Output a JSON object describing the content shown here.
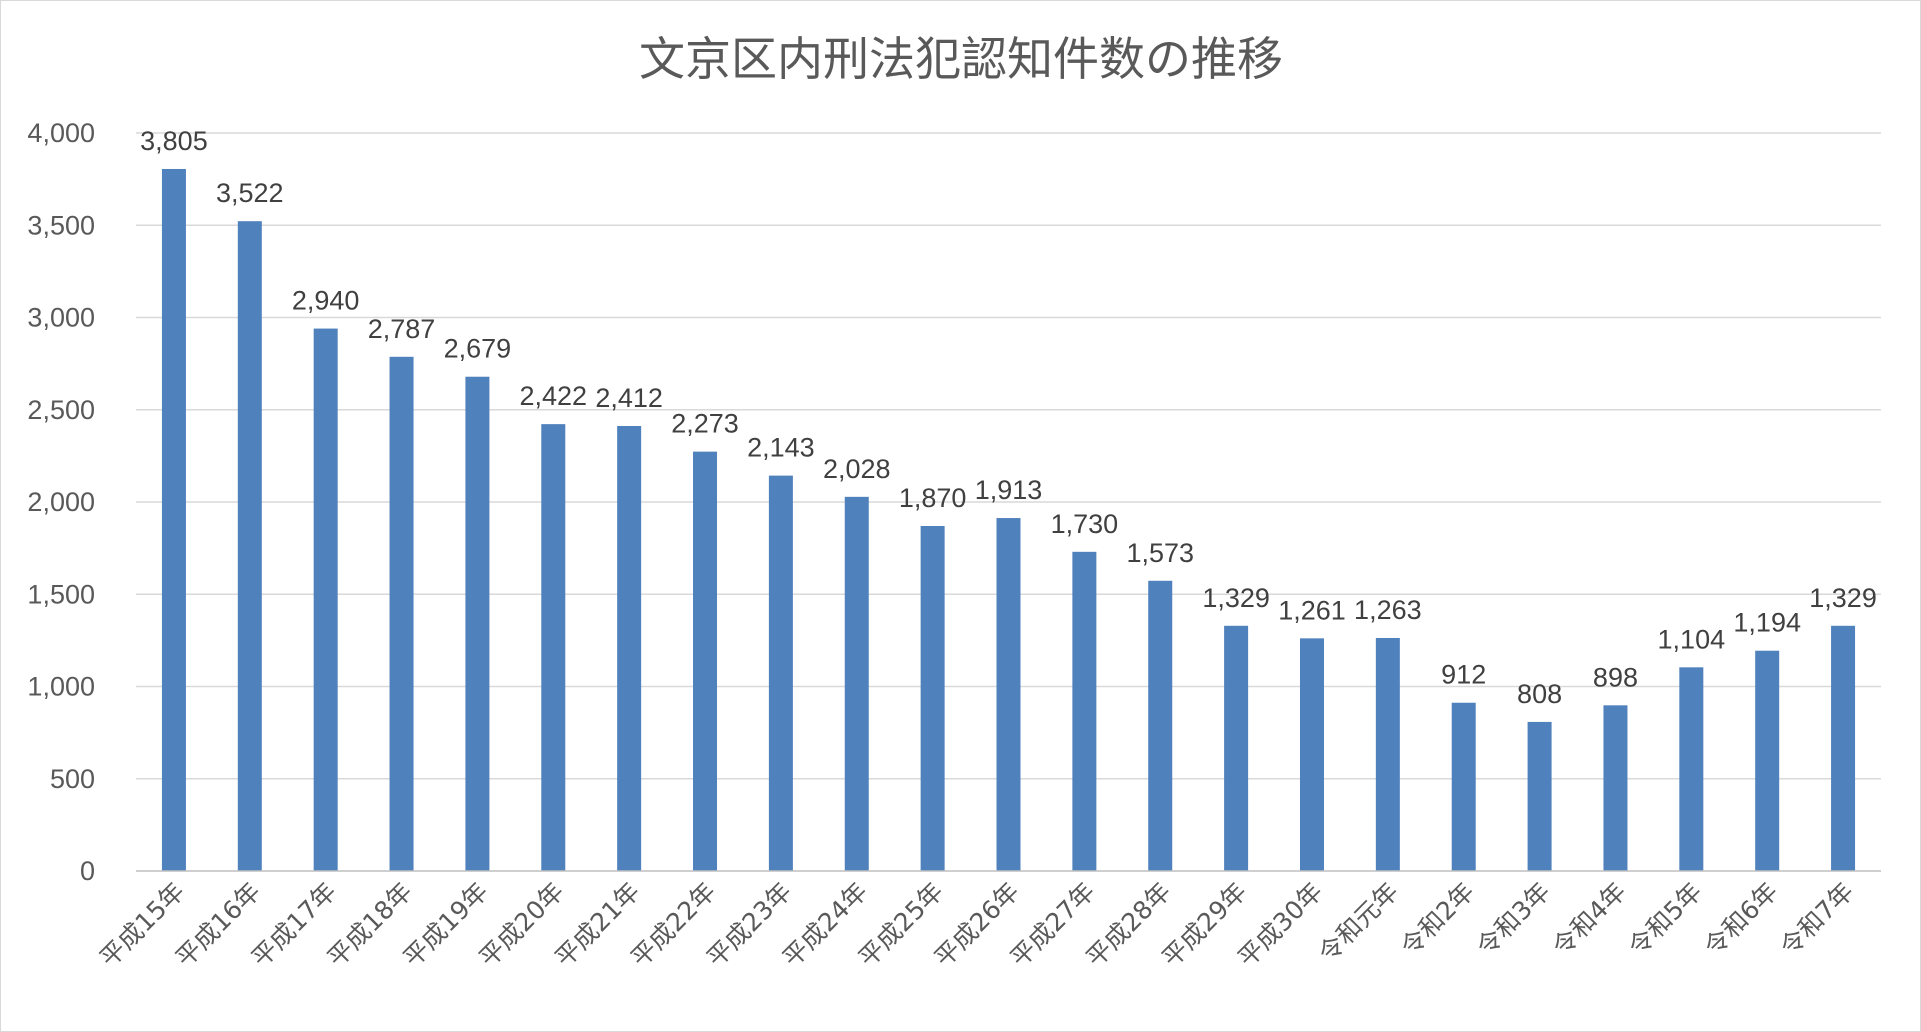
{
  "chart_data": {
    "type": "bar",
    "title": "文京区内刑法犯認知件数の推移",
    "xlabel": "",
    "ylabel": "",
    "ylim": [
      0,
      4000
    ],
    "yticks": [
      0,
      500,
      1000,
      1500,
      2000,
      2500,
      3000,
      3500,
      4000
    ],
    "ytick_labels": [
      "0",
      "500",
      "1,000",
      "1,500",
      "2,000",
      "2,500",
      "3,000",
      "3,500",
      "4,000"
    ],
    "grid": true,
    "legend": "none",
    "bar_color": "#4f81bd",
    "categories": [
      "平成15年",
      "平成16年",
      "平成17年",
      "平成18年",
      "平成19年",
      "平成20年",
      "平成21年",
      "平成22年",
      "平成23年",
      "平成24年",
      "平成25年",
      "平成26年",
      "平成27年",
      "平成28年",
      "平成29年",
      "平成30年",
      "令和元年",
      "令和2年",
      "令和3年",
      "令和4年",
      "令和5年",
      "令和6年",
      "令和7年"
    ],
    "values": [
      3805,
      3522,
      2940,
      2787,
      2679,
      2422,
      2412,
      2273,
      2143,
      2028,
      1870,
      1913,
      1730,
      1573,
      1329,
      1261,
      1263,
      912,
      808,
      898,
      1104,
      1194,
      1329
    ],
    "data_labels": [
      "3,805",
      "3,522",
      "2,940",
      "2,787",
      "2,679",
      "2,422",
      "2,412",
      "2,273",
      "2,143",
      "2,028",
      "1,870",
      "1,913",
      "1,730",
      "1,573",
      "1,329",
      "1,261",
      "1,263",
      "912",
      "808",
      "898",
      "1,104",
      "1,194",
      "1,329"
    ]
  }
}
